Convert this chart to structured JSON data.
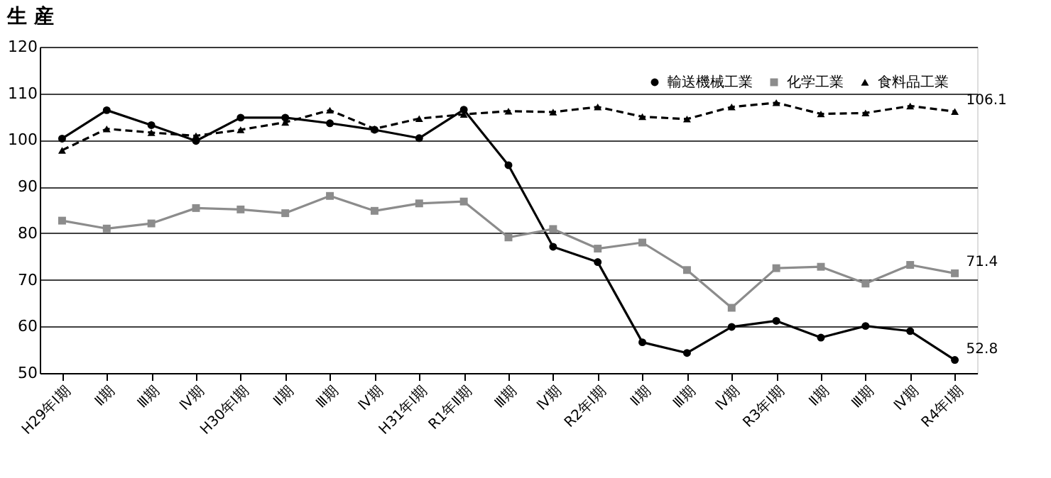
{
  "chart_data": {
    "type": "line",
    "title": "生 産",
    "categories": [
      "H29年Ⅰ期",
      "Ⅱ期",
      "Ⅲ期",
      "Ⅳ期",
      "H30年Ⅰ期",
      "Ⅱ期",
      "Ⅲ期",
      "Ⅳ期",
      "H31年Ⅰ期",
      "R1年Ⅱ期",
      "Ⅲ期",
      "Ⅳ期",
      "R2年Ⅰ期",
      "Ⅱ期",
      "Ⅲ期",
      "Ⅳ期",
      "R3年Ⅰ期",
      "Ⅱ期",
      "Ⅲ期",
      "Ⅳ期",
      "R4年Ⅰ期"
    ],
    "series": [
      {
        "name": "輸送機械工業",
        "color": "#000000",
        "marker": "circle",
        "line_style": "solid",
        "values": [
          100.3,
          106.4,
          103.2,
          99.8,
          104.8,
          104.8,
          103.6,
          102.2,
          100.4,
          106.5,
          94.6,
          77.1,
          73.8,
          56.6,
          54.3,
          59.9,
          61.2,
          57.6,
          60.1,
          59.0,
          52.8
        ],
        "value_labels": [
          null,
          null,
          null,
          null,
          null,
          null,
          null,
          null,
          null,
          null,
          null,
          null,
          null,
          null,
          null,
          null,
          null,
          null,
          null,
          null,
          "52.8"
        ]
      },
      {
        "name": "化学工業",
        "color": "#8c8c8c",
        "marker": "square",
        "line_style": "solid",
        "values": [
          82.7,
          81.0,
          82.1,
          85.4,
          85.1,
          84.3,
          88.0,
          84.8,
          86.4,
          86.8,
          79.1,
          80.9,
          76.7,
          78.0,
          72.1,
          64.0,
          72.5,
          72.8,
          69.2,
          73.2,
          71.4
        ],
        "value_labels": [
          null,
          null,
          null,
          null,
          null,
          null,
          null,
          null,
          null,
          null,
          null,
          null,
          null,
          null,
          null,
          null,
          null,
          null,
          null,
          null,
          "71.4"
        ]
      },
      {
        "name": "食料品工業",
        "color": "#000000",
        "marker": "triangle",
        "line_style": "dashed",
        "values": [
          97.8,
          102.4,
          101.6,
          100.9,
          102.2,
          103.8,
          106.4,
          102.4,
          104.6,
          105.5,
          106.2,
          106.0,
          107.1,
          105.0,
          104.5,
          107.1,
          108.0,
          105.6,
          105.8,
          107.3,
          106.1
        ],
        "value_labels": [
          null,
          null,
          null,
          null,
          null,
          null,
          null,
          null,
          null,
          null,
          null,
          null,
          null,
          null,
          null,
          null,
          null,
          null,
          null,
          null,
          "106.1"
        ]
      }
    ],
    "ylim": [
      50,
      120
    ],
    "yticks": [
      50,
      60,
      70,
      80,
      90,
      100,
      110,
      120
    ],
    "grid": "y",
    "legend": "top right"
  }
}
